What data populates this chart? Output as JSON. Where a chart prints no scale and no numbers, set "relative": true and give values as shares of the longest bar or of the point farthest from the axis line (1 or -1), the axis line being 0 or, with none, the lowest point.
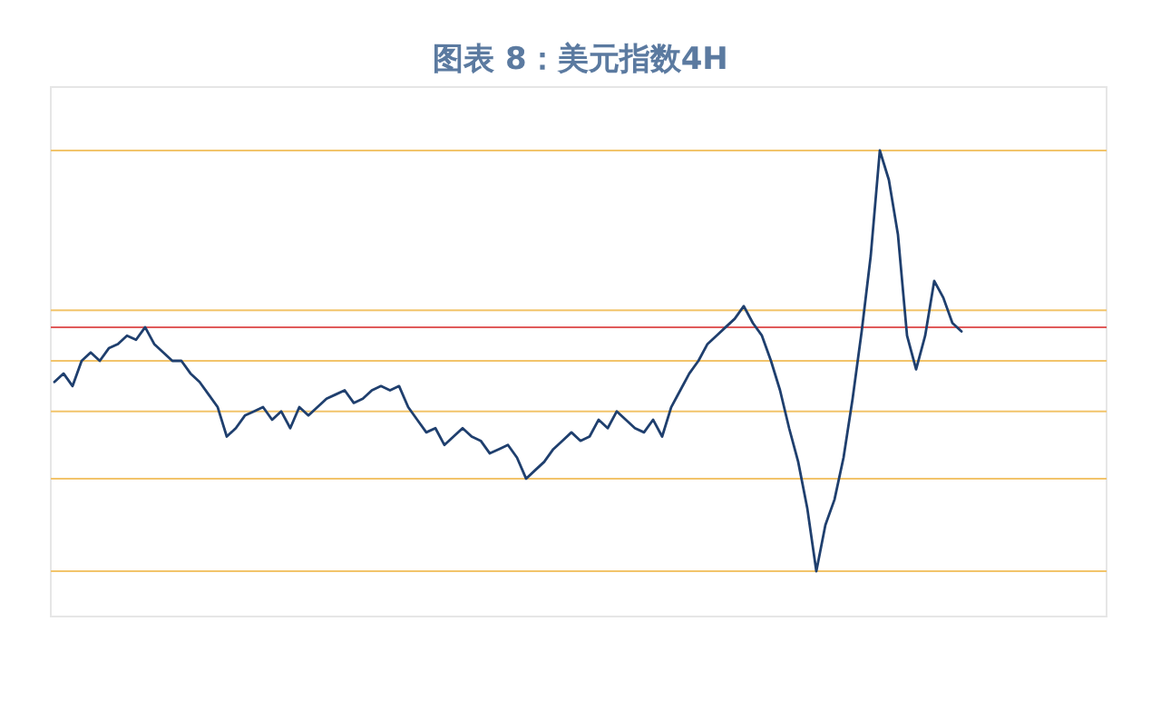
{
  "chart_data": {
    "type": "line",
    "title": "图表 8：美元指数4H",
    "relative": true,
    "categories": [
      null,
      null,
      null,
      null,
      null,
      null,
      null,
      null,
      null,
      null,
      null,
      null,
      null,
      null,
      null,
      null,
      null,
      null,
      null,
      null,
      null,
      null,
      null,
      null,
      null,
      null,
      null,
      null,
      null,
      null,
      null,
      null,
      null,
      null,
      null,
      null,
      null,
      null,
      null,
      null,
      null,
      null,
      null,
      null,
      null,
      null,
      null,
      null,
      null,
      null,
      null,
      null,
      null,
      null,
      null,
      null,
      null,
      null,
      null,
      null,
      null,
      null,
      null,
      null,
      null,
      null,
      null,
      null,
      null,
      null,
      null,
      null,
      null,
      null,
      null,
      null,
      null,
      null,
      null,
      null,
      null,
      null,
      null,
      null,
      null,
      null,
      null,
      null,
      null,
      null,
      null,
      null,
      null,
      null,
      null,
      null,
      null,
      null,
      null,
      null,
      null
    ],
    "series": [
      {
        "color": "#1f3f6e",
        "values": [
          0.45,
          0.47,
          0.44,
          0.5,
          0.52,
          0.5,
          0.53,
          0.54,
          0.56,
          0.55,
          0.58,
          0.54,
          0.52,
          0.5,
          0.5,
          0.47,
          0.45,
          0.42,
          0.39,
          0.32,
          0.34,
          0.37,
          0.38,
          0.39,
          0.36,
          0.38,
          0.34,
          0.39,
          0.37,
          0.39,
          0.41,
          0.42,
          0.43,
          0.4,
          0.41,
          0.43,
          0.44,
          0.43,
          0.44,
          0.39,
          0.36,
          0.33,
          0.34,
          0.3,
          0.32,
          0.34,
          0.32,
          0.31,
          0.28,
          0.29,
          0.3,
          0.27,
          0.22,
          0.24,
          0.26,
          0.29,
          0.31,
          0.33,
          0.31,
          0.32,
          0.36,
          0.34,
          0.38,
          0.36,
          0.34,
          0.33,
          0.36,
          0.32,
          0.39,
          0.43,
          0.47,
          0.5,
          0.54,
          0.56,
          0.58,
          0.6,
          0.63,
          0.59,
          0.56,
          0.5,
          0.43,
          0.34,
          0.26,
          0.15,
          0,
          0.11,
          0.17,
          0.27,
          0.41,
          0.57,
          0.75,
          1,
          0.93,
          0.8,
          0.56,
          0.48,
          0.56,
          0.69,
          0.65,
          0.59,
          0.57
        ]
      }
    ],
    "ref_lines": [
      {
        "axis": "y",
        "value": 0.58,
        "color": "#e05a5a"
      },
      {
        "axis": "y",
        "value": 1,
        "color": "#f2c46b"
      },
      {
        "axis": "y",
        "value": 0.62,
        "color": "#f2c46b"
      },
      {
        "axis": "y",
        "value": 0.5,
        "color": "#f2c46b"
      },
      {
        "axis": "y",
        "value": 0.38,
        "color": "#f2c46b"
      },
      {
        "axis": "y",
        "value": 0.22,
        "color": "#f2c46b"
      },
      {
        "axis": "y",
        "value": 0,
        "color": "#f2c46b"
      }
    ]
  }
}
